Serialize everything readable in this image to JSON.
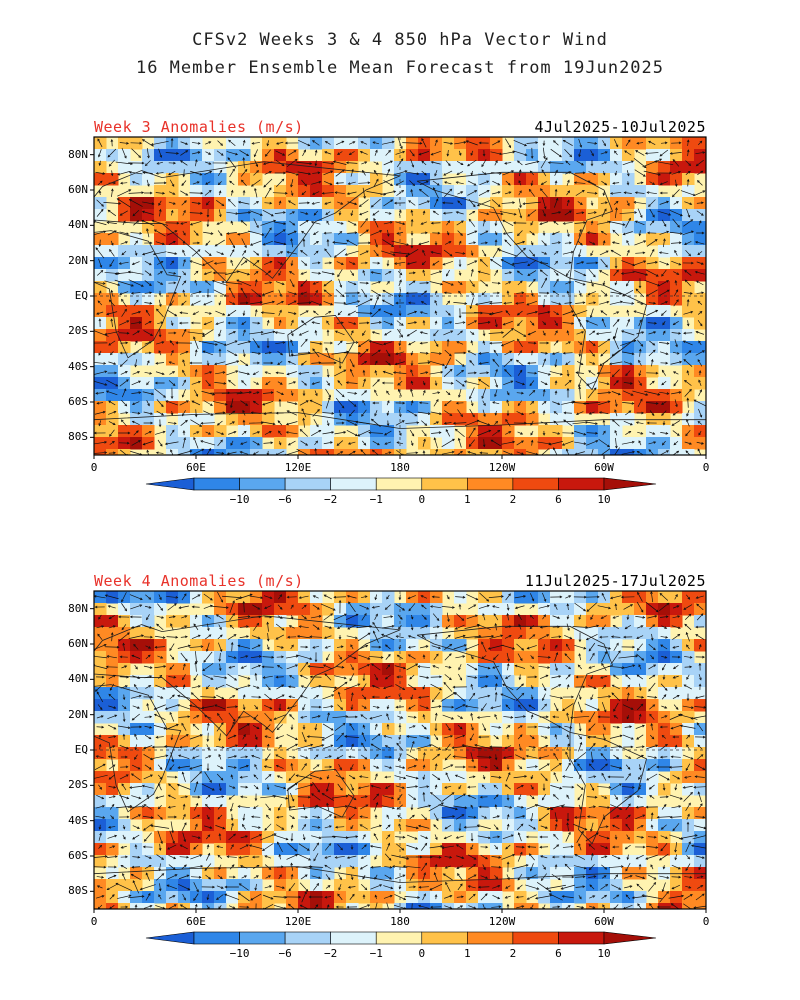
{
  "header": {
    "line1": "CFSv2 Weeks 3 & 4 850 hPa Vector Wind",
    "line2": "16 Member Ensemble Mean Forecast from 19Jun2025"
  },
  "panels": [
    {
      "title": "Week 3 Anomalies (m/s)",
      "date_range": "4Jul2025-10Jul2025",
      "lat_labels": [
        "80N",
        "60N",
        "40N",
        "20N",
        "EQ",
        "20S",
        "40S",
        "60S",
        "80S"
      ],
      "lon_labels": [
        "0",
        "60E",
        "120E",
        "180",
        "120W",
        "60W",
        "0"
      ],
      "colorbar_labels": [
        "-10",
        "-6",
        "-2",
        "-1",
        "0",
        "1",
        "2",
        "6",
        "10"
      ]
    },
    {
      "title": "Week 4 Anomalies (m/s)",
      "date_range": "11Jul2025-17Jul2025",
      "lat_labels": [
        "80N",
        "60N",
        "40N",
        "20N",
        "EQ",
        "20S",
        "40S",
        "60S",
        "80S"
      ],
      "lon_labels": [
        "0",
        "60E",
        "120E",
        "180",
        "120W",
        "60W",
        "0"
      ],
      "colorbar_labels": [
        "-10",
        "-6",
        "-2",
        "-1",
        "0",
        "1",
        "2",
        "6",
        "10"
      ]
    }
  ],
  "colors": {
    "title_accent": "#e8322a",
    "scale": [
      "#1b5fd6",
      "#2f86e8",
      "#5aa7ef",
      "#a8d3f7",
      "#ddf3fb",
      "#fff3b0",
      "#ffc249",
      "#ff8a23",
      "#ef4a10",
      "#c8180d",
      "#a50f08"
    ]
  }
}
